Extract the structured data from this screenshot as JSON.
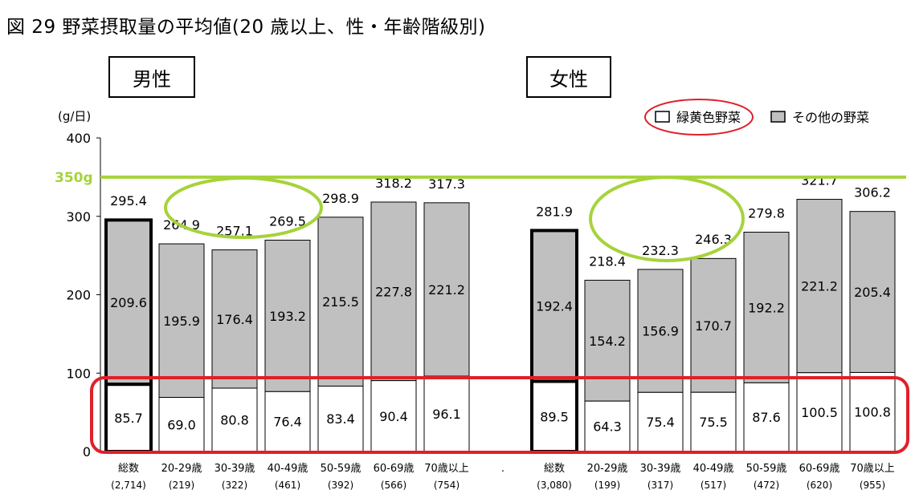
{
  "title": "図 29  野菜摂取量の平均値(20 歳以上、性・年齢階級別)",
  "panel_labels": {
    "male": "男性",
    "female": "女性"
  },
  "ref_label": "350g",
  "chart_data": {
    "type": "bar",
    "stacked": true,
    "ylabel": "(g/日)",
    "ylim": [
      0,
      400
    ],
    "yticks": [
      0,
      100,
      200,
      300,
      400
    ],
    "reference_line": 350,
    "legend": [
      "緑黄色野菜",
      "その他の野菜"
    ],
    "legend_position": "top-right",
    "groups": [
      {
        "name": "男性",
        "categories": [
          "総数",
          "20-29歳",
          "30-39歳",
          "40-49歳",
          "50-59歳",
          "60-69歳",
          "70歳以上"
        ],
        "counts": [
          "(2,714)",
          "(219)",
          "(322)",
          "(461)",
          "(392)",
          "(566)",
          "(754)"
        ],
        "green_yellow": [
          85.7,
          69.0,
          80.8,
          76.4,
          83.4,
          90.4,
          96.1
        ],
        "other": [
          209.6,
          195.9,
          176.4,
          193.2,
          215.5,
          227.8,
          221.2
        ],
        "total": [
          295.4,
          264.9,
          257.1,
          269.5,
          298.9,
          318.2,
          317.3
        ]
      },
      {
        "name": "女性",
        "categories": [
          "総数",
          "20-29歳",
          "30-39歳",
          "40-49歳",
          "50-59歳",
          "60-69歳",
          "70歳以上"
        ],
        "counts": [
          "(3,080)",
          "(199)",
          "(317)",
          "(517)",
          "(472)",
          "(620)",
          "(955)"
        ],
        "green_yellow": [
          89.5,
          64.3,
          75.4,
          75.5,
          87.6,
          100.5,
          100.8
        ],
        "other": [
          192.4,
          154.2,
          156.9,
          170.7,
          192.2,
          221.2,
          205.4
        ],
        "total": [
          281.9,
          218.4,
          232.3,
          246.3,
          279.8,
          321.7,
          306.2
        ]
      }
    ],
    "separator_label": "."
  },
  "colors": {
    "other_fill": "#c0c0c0",
    "gy_fill": "#ffffff",
    "ref_line": "#a6d33b",
    "highlight_red": "#e0202a",
    "ellipse_green": "#a6d33b"
  }
}
